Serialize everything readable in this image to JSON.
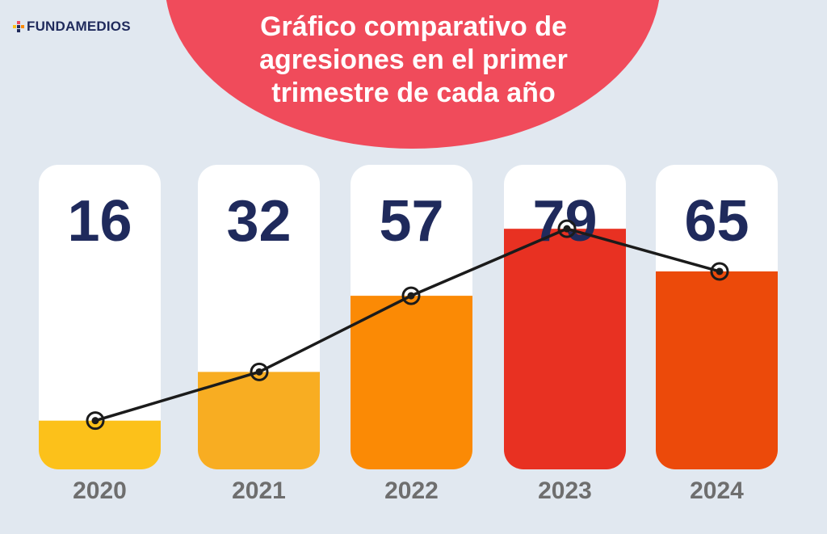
{
  "brand": {
    "name": "FUNDAMEDIOS"
  },
  "colors": {
    "background": "#e1e8f0",
    "title_blob": "#f04b5b",
    "value_text": "#1f2a5c",
    "year_text": "#6e6e6e"
  },
  "chart_data": {
    "type": "bar",
    "title": "Gráfico comparativo de agresiones en el primer trimestre de cada año",
    "categories": [
      "2020",
      "2021",
      "2022",
      "2023",
      "2024"
    ],
    "values": [
      16,
      32,
      57,
      79,
      65
    ],
    "bar_colors": [
      "#fcc11a",
      "#f8ad22",
      "#fb8a05",
      "#e83122",
      "#ec4a0a"
    ],
    "overlay_line": true,
    "ylim": [
      0,
      100
    ],
    "grid": false,
    "legend": "none"
  }
}
